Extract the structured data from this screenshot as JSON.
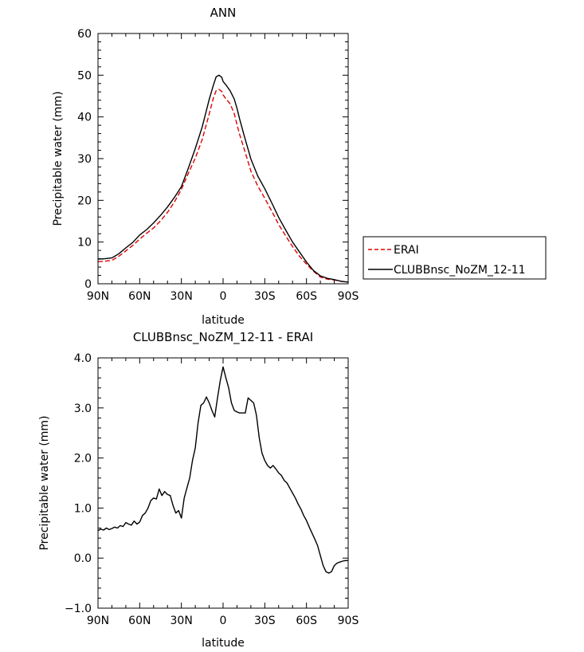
{
  "chart_data": [
    {
      "type": "line",
      "title": "ANN",
      "xlabel": "latitude",
      "ylabel": "Precipitable water (mm)",
      "xlim": [
        90,
        -90
      ],
      "ylim": [
        0,
        60
      ],
      "x_ticks": [
        {
          "value": 90,
          "label": "90N"
        },
        {
          "value": 60,
          "label": "60N"
        },
        {
          "value": 30,
          "label": "30N"
        },
        {
          "value": 0,
          "label": "0"
        },
        {
          "value": -30,
          "label": "30S"
        },
        {
          "value": -60,
          "label": "60S"
        },
        {
          "value": -90,
          "label": "90S"
        }
      ],
      "y_ticks": [
        {
          "value": 0,
          "label": "0"
        },
        {
          "value": 10,
          "label": "10"
        },
        {
          "value": 20,
          "label": "20"
        },
        {
          "value": 30,
          "label": "30"
        },
        {
          "value": 40,
          "label": "40"
        },
        {
          "value": 50,
          "label": "50"
        },
        {
          "value": 60,
          "label": "60"
        }
      ],
      "legend": "right-bottom",
      "series": [
        {
          "name": "ERAI",
          "color": "#e00000",
          "dash": "dashed",
          "x": [
            90,
            85,
            80,
            75,
            70,
            65,
            60,
            55,
            50,
            45,
            40,
            35,
            30,
            25,
            20,
            15,
            10,
            7,
            5,
            3,
            1,
            0,
            -2,
            -5,
            -8,
            -10,
            -12,
            -15,
            -20,
            -25,
            -30,
            -35,
            -40,
            -45,
            -50,
            -55,
            -60,
            -65,
            -70,
            -75,
            -80,
            -85,
            -90
          ],
          "y": [
            5.3,
            5.4,
            5.6,
            6.6,
            7.9,
            9.2,
            10.7,
            12.1,
            13.4,
            15.1,
            17.1,
            19.6,
            22.6,
            26.5,
            30.1,
            34.6,
            40.7,
            44.5,
            46.3,
            46.6,
            46.1,
            45.3,
            44.3,
            43.2,
            40.8,
            38.2,
            35.7,
            32.5,
            27.0,
            23.4,
            20.5,
            17.4,
            14.2,
            11.5,
            8.9,
            6.6,
            4.7,
            3.0,
            1.6,
            1.1,
            0.9,
            0.6,
            0.4
          ]
        },
        {
          "name": "CLUBBnsc_NoZM_12-11",
          "color": "#000000",
          "dash": "solid",
          "x": [
            90,
            85,
            80,
            75,
            70,
            65,
            60,
            55,
            50,
            45,
            40,
            35,
            30,
            25,
            20,
            15,
            10,
            7,
            5,
            3,
            1,
            0,
            -2,
            -5,
            -8,
            -10,
            -12,
            -15,
            -20,
            -25,
            -30,
            -35,
            -40,
            -45,
            -50,
            -55,
            -60,
            -65,
            -70,
            -75,
            -80,
            -85,
            -90
          ],
          "y": [
            5.9,
            6.0,
            6.2,
            7.2,
            8.6,
            9.9,
            11.7,
            13.0,
            14.6,
            16.4,
            18.4,
            20.7,
            23.3,
            27.7,
            32.4,
            37.6,
            44.2,
            47.6,
            49.6,
            50.0,
            49.5,
            48.5,
            47.7,
            46.3,
            44.3,
            42.1,
            39.4,
            35.7,
            29.9,
            25.8,
            22.8,
            19.4,
            15.9,
            12.9,
            10.0,
            7.6,
            5.2,
            3.2,
            1.9,
            1.3,
            1.0,
            0.6,
            0.4
          ]
        }
      ]
    },
    {
      "type": "line",
      "title": "CLUBBnsc_NoZM_12-11 - ERAI",
      "xlabel": "latitude",
      "ylabel": "Precipitable water (mm)",
      "xlim": [
        90,
        -90
      ],
      "ylim": [
        -1.0,
        4.0
      ],
      "x_ticks": [
        {
          "value": 90,
          "label": "90N"
        },
        {
          "value": 60,
          "label": "60N"
        },
        {
          "value": 30,
          "label": "30N"
        },
        {
          "value": 0,
          "label": "0"
        },
        {
          "value": -30,
          "label": "30S"
        },
        {
          "value": -60,
          "label": "60S"
        },
        {
          "value": -90,
          "label": "90S"
        }
      ],
      "y_ticks": [
        {
          "value": -1.0,
          "label": "−1.0"
        },
        {
          "value": 0.0,
          "label": "0.0"
        },
        {
          "value": 1.0,
          "label": "1.0"
        },
        {
          "value": 2.0,
          "label": "2.0"
        },
        {
          "value": 3.0,
          "label": "3.0"
        },
        {
          "value": 4.0,
          "label": "4.0"
        }
      ],
      "series": [
        {
          "color": "#000000",
          "x": [
            90,
            88,
            86,
            84,
            82,
            80,
            78,
            76,
            74,
            72,
            70,
            68,
            66,
            64,
            62,
            60,
            58,
            56,
            54,
            52,
            50,
            48,
            46,
            44,
            42,
            40,
            38,
            36,
            34,
            32,
            30,
            28,
            26,
            24,
            22,
            20,
            18,
            16,
            14,
            12,
            10,
            8,
            6,
            4,
            2,
            0,
            -2,
            -4,
            -6,
            -8,
            -10,
            -12,
            -14,
            -16,
            -18,
            -20,
            -22,
            -24,
            -26,
            -28,
            -30,
            -32,
            -34,
            -36,
            -38,
            -40,
            -42,
            -44,
            -46,
            -48,
            -50,
            -52,
            -54,
            -56,
            -58,
            -60,
            -62,
            -64,
            -66,
            -68,
            -70,
            -72,
            -74,
            -76,
            -78,
            -80,
            -82,
            -84,
            -86,
            -88,
            -90
          ],
          "y": [
            0.55,
            0.58,
            0.56,
            0.6,
            0.57,
            0.59,
            0.62,
            0.6,
            0.65,
            0.63,
            0.71,
            0.68,
            0.66,
            0.74,
            0.68,
            0.72,
            0.85,
            0.9,
            1.0,
            1.15,
            1.2,
            1.18,
            1.38,
            1.25,
            1.33,
            1.27,
            1.25,
            1.05,
            0.9,
            0.95,
            0.8,
            1.2,
            1.4,
            1.6,
            1.95,
            2.2,
            2.7,
            3.05,
            3.1,
            3.22,
            3.1,
            2.95,
            2.82,
            3.2,
            3.55,
            3.82,
            3.6,
            3.4,
            3.1,
            2.95,
            2.92,
            2.9,
            2.9,
            2.9,
            3.2,
            3.15,
            3.1,
            2.85,
            2.4,
            2.1,
            1.95,
            1.85,
            1.8,
            1.85,
            1.78,
            1.7,
            1.65,
            1.55,
            1.5,
            1.4,
            1.3,
            1.2,
            1.08,
            0.98,
            0.85,
            0.75,
            0.62,
            0.5,
            0.38,
            0.25,
            0.05,
            -0.15,
            -0.27,
            -0.3,
            -0.27,
            -0.15,
            -0.1,
            -0.08,
            -0.06,
            -0.05,
            -0.05
          ]
        }
      ]
    }
  ]
}
